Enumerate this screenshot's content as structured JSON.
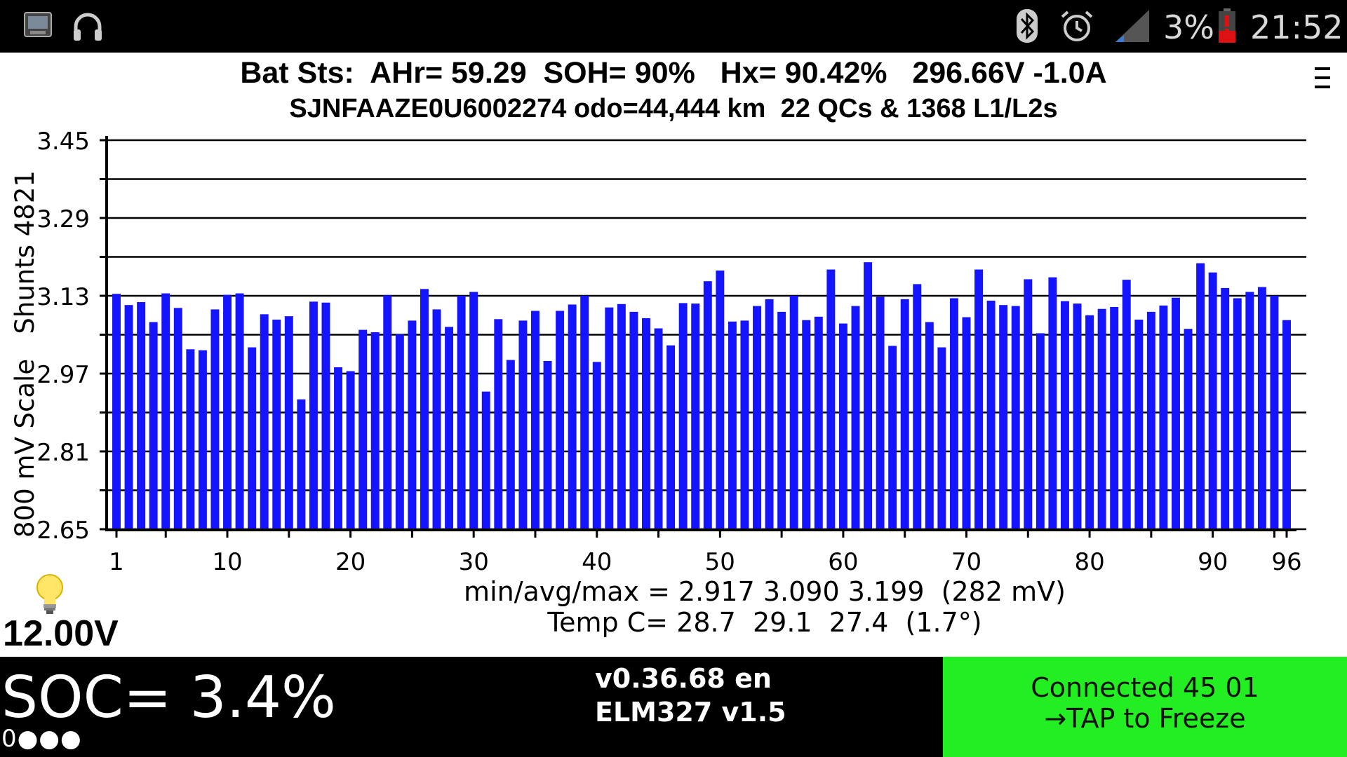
{
  "status_bar": {
    "icons": [
      "app-icon",
      "headphones-icon",
      "bluetooth-icon",
      "alarm-icon",
      "signal-icon",
      "battery-low-icon"
    ],
    "battery_text": "3%",
    "clock": "21:52"
  },
  "header": {
    "line1": "Bat Sts:  AHr= 59.29  SOH= 90%   Hx= 90.42%   296.66V -1.0A",
    "line2": "SJNFAAZE0U6002274 odo=44,444 km  22 QCs & 1368 L1/L2s",
    "menu_icon": "menu-icon"
  },
  "chart_data": {
    "type": "bar",
    "ylabel": "800 mV Scale   Shunts 4821",
    "ylim": [
      2.65,
      3.45
    ],
    "ytick_labels": [
      "3.45",
      "3.29",
      "3.13",
      "2.97",
      "2.81",
      "2.65"
    ],
    "xtick_labels": [
      "1",
      "10",
      "20",
      "30",
      "40",
      "50",
      "60",
      "70",
      "80",
      "90",
      "96"
    ],
    "xtick_values": [
      1,
      10,
      20,
      30,
      40,
      50,
      60,
      70,
      80,
      90,
      96
    ],
    "xlim": [
      1,
      96
    ],
    "grid": true,
    "bar_color": "#1414ff",
    "values": [
      3.134,
      3.111,
      3.117,
      3.076,
      3.135,
      3.105,
      3.02,
      3.018,
      3.102,
      3.132,
      3.135,
      3.024,
      3.092,
      3.081,
      3.088,
      2.917,
      3.118,
      3.116,
      2.983,
      2.975,
      3.06,
      3.055,
      3.131,
      3.051,
      3.079,
      3.144,
      3.102,
      3.066,
      3.13,
      3.138,
      2.933,
      3.082,
      2.998,
      3.079,
      3.099,
      2.996,
      3.099,
      3.112,
      3.13,
      2.994,
      3.106,
      3.113,
      3.097,
      3.084,
      3.063,
      3.028,
      3.115,
      3.114,
      3.16,
      3.182,
      3.077,
      3.079,
      3.109,
      3.123,
      3.097,
      3.13,
      3.08,
      3.087,
      3.184,
      3.073,
      3.109,
      3.199,
      3.128,
      3.027,
      3.123,
      3.154,
      3.076,
      3.024,
      3.125,
      3.086,
      3.184,
      3.12,
      3.111,
      3.109,
      3.164,
      3.053,
      3.168,
      3.119,
      3.114,
      3.09,
      3.103,
      3.107,
      3.163,
      3.081,
      3.097,
      3.11,
      3.126,
      3.062,
      3.197,
      3.178,
      3.146,
      3.125,
      3.138,
      3.148,
      3.13,
      3.08
    ]
  },
  "stats": {
    "minmax": "min/avg/max = 2.917 3.090 3.199  (282 mV)",
    "temp": "Temp C= 28.7  29.1  27.4  (1.7°)"
  },
  "aux": {
    "icon": "lightbulb-icon",
    "voltage": "12.00V"
  },
  "bottom": {
    "soc": "SOC= 3.4%",
    "soc_dots": "0●●●",
    "version": "v0.36.68 en",
    "elm": "ELM327 v1.5",
    "connect_line1": "Connected 45 01",
    "connect_line2": "→TAP to Freeze",
    "connect_color": "#22ee22"
  }
}
